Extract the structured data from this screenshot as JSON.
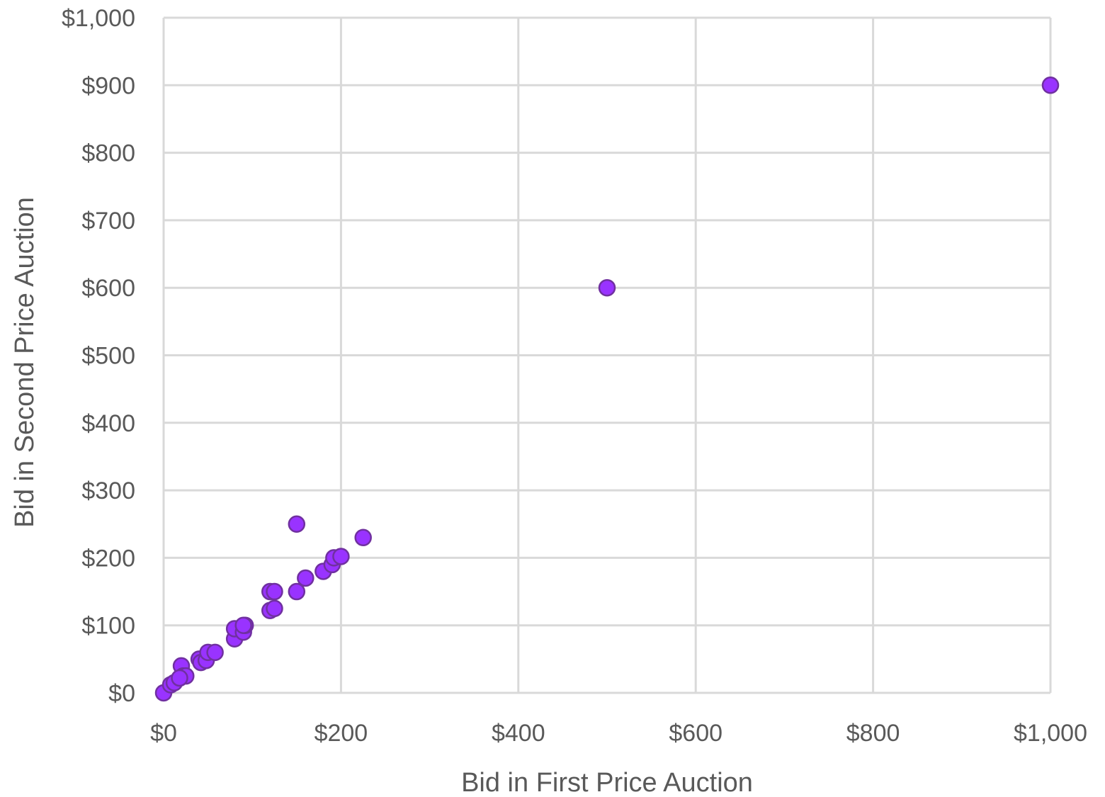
{
  "chart_data": {
    "type": "scatter",
    "title": "",
    "xlabel": "Bid in First Price Auction",
    "ylabel": "Bid in Second Price Auction",
    "xlim": [
      0,
      1000
    ],
    "ylim": [
      0,
      1000
    ],
    "x_ticks": [
      0,
      200,
      400,
      600,
      800,
      1000
    ],
    "y_ticks": [
      0,
      100,
      200,
      300,
      400,
      500,
      600,
      700,
      800,
      900,
      1000
    ],
    "x_tick_labels": [
      "$0",
      "$200",
      "$400",
      "$600",
      "$800",
      "$1,000"
    ],
    "y_tick_labels": [
      "$0",
      "$100",
      "$200",
      "$300",
      "$400",
      "$500",
      "$600",
      "$700",
      "$800",
      "$900",
      "$1,000"
    ],
    "grid": true,
    "legend": "none",
    "marker_color": "#9933ff",
    "marker_edge_color": "#7030a0",
    "grid_color": "#d9d9d9",
    "text_color": "#595959",
    "series": [
      {
        "points": [
          [
            0,
            0
          ],
          [
            8,
            12
          ],
          [
            12,
            15
          ],
          [
            20,
            40
          ],
          [
            22,
            25
          ],
          [
            25,
            25
          ],
          [
            18,
            22
          ],
          [
            40,
            50
          ],
          [
            42,
            45
          ],
          [
            48,
            48
          ],
          [
            50,
            60
          ],
          [
            58,
            60
          ],
          [
            80,
            80
          ],
          [
            80,
            95
          ],
          [
            90,
            90
          ],
          [
            92,
            100
          ],
          [
            90,
            100
          ],
          [
            120,
            150
          ],
          [
            125,
            150
          ],
          [
            120,
            122
          ],
          [
            125,
            125
          ],
          [
            150,
            150
          ],
          [
            160,
            170
          ],
          [
            180,
            180
          ],
          [
            190,
            190
          ],
          [
            192,
            200
          ],
          [
            200,
            202
          ],
          [
            150,
            250
          ],
          [
            225,
            230
          ],
          [
            500,
            600
          ],
          [
            1000,
            900
          ]
        ]
      }
    ]
  }
}
